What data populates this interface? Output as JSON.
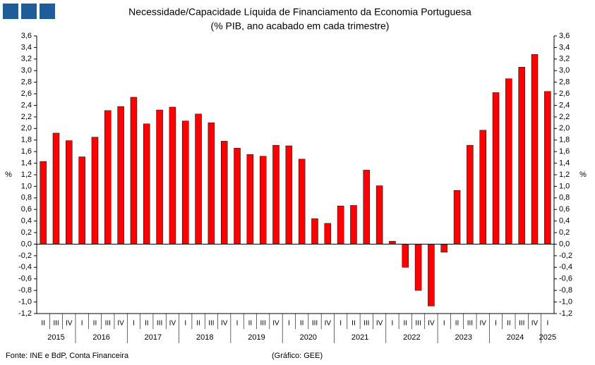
{
  "chart_data": {
    "type": "bar",
    "title": "Necessidade/Capacidade Líquida de Financiamento da Economia Portuguesa",
    "subtitle": "(% PIB, ano acabado em cada trimestre)",
    "y_label": "%",
    "source": "Fonte: INE e BdP, Conta Financeira",
    "note": "(Gráfico: GEE)",
    "color": "#ff0000",
    "categories": [
      "II",
      "III",
      "IV",
      "I",
      "II",
      "III",
      "IV",
      "I",
      "II",
      "III",
      "IV",
      "I",
      "II",
      "III",
      "IV",
      "I",
      "II",
      "III",
      "IV",
      "I",
      "II",
      "III",
      "IV",
      "I",
      "II",
      "III",
      "IV",
      "I",
      "II",
      "III",
      "IV",
      "I",
      "II",
      "III",
      "IV",
      "I",
      "II",
      "III",
      "IV",
      "I"
    ],
    "year_labels": [
      "2015",
      "2016",
      "2017",
      "2018",
      "2019",
      "2020",
      "2021",
      "2022",
      "2023",
      "2024",
      "2025"
    ],
    "values": [
      1.43,
      1.92,
      1.79,
      1.51,
      1.85,
      2.31,
      2.38,
      2.54,
      2.08,
      2.32,
      2.37,
      2.13,
      2.25,
      2.1,
      1.78,
      1.66,
      1.55,
      1.52,
      1.71,
      1.7,
      1.47,
      0.44,
      0.36,
      0.66,
      0.67,
      1.28,
      1.01,
      0.05,
      -0.4,
      -0.8,
      -1.07,
      -0.14,
      0.93,
      1.71,
      1.97,
      2.62,
      2.86,
      3.06,
      3.28,
      2.64
    ],
    "ylim": [
      -1.2,
      3.6
    ],
    "yticks": [
      {
        "value": -1.2,
        "label": "-1,2"
      },
      {
        "value": -1.0,
        "label": "-1,0"
      },
      {
        "value": -0.8,
        "label": "-0,8"
      },
      {
        "value": -0.6,
        "label": "-0,6"
      },
      {
        "value": -0.4,
        "label": "-0,4"
      },
      {
        "value": -0.2,
        "label": "-0,2"
      },
      {
        "value": 0,
        "label": "0,0"
      },
      {
        "value": 0.2,
        "label": "0,2"
      },
      {
        "value": 0.4,
        "label": "0,4"
      },
      {
        "value": 0.6,
        "label": "0,6"
      },
      {
        "value": 0.8,
        "label": "0,8"
      },
      {
        "value": 1.0,
        "label": "1,0"
      },
      {
        "value": 1.2,
        "label": "1,2"
      },
      {
        "value": 1.4,
        "label": "1,4"
      },
      {
        "value": 1.6,
        "label": "1,6"
      },
      {
        "value": 1.8,
        "label": "1,8"
      },
      {
        "value": 2.0,
        "label": "2,0"
      },
      {
        "value": 2.2,
        "label": "2,2"
      },
      {
        "value": 2.4,
        "label": "2,4"
      },
      {
        "value": 2.6,
        "label": "2,6"
      },
      {
        "value": 2.8,
        "label": "2,8"
      },
      {
        "value": 3.0,
        "label": "3,0"
      },
      {
        "value": 3.2,
        "label": "3,2"
      },
      {
        "value": 3.4,
        "label": "3,4"
      },
      {
        "value": 3.6,
        "label": "3,6"
      }
    ]
  }
}
